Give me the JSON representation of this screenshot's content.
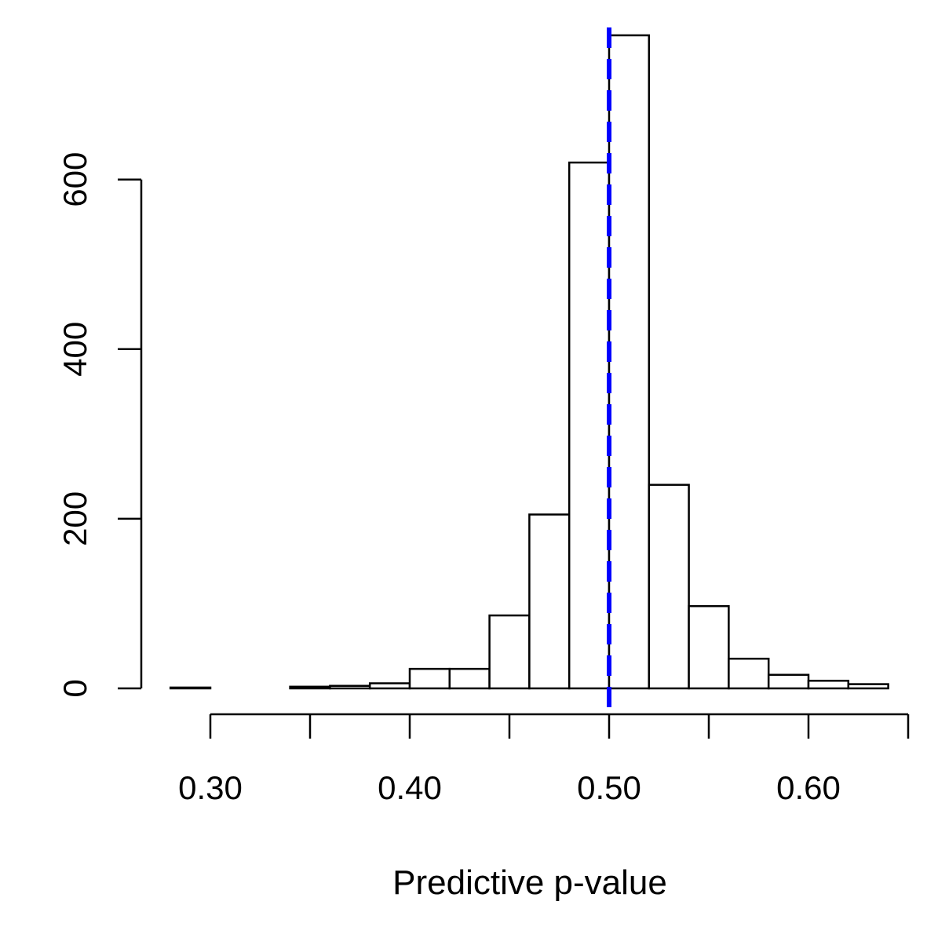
{
  "chart_data": {
    "type": "bar",
    "title": "",
    "xlabel": "Predictive p-value",
    "ylabel": "",
    "bin_edges": [
      0.28,
      0.3,
      0.32,
      0.34,
      0.36,
      0.38,
      0.4,
      0.42,
      0.44,
      0.46,
      0.48,
      0.5,
      0.52,
      0.54,
      0.56,
      0.58,
      0.6,
      0.62,
      0.64
    ],
    "values": [
      1,
      0,
      0,
      2,
      3,
      6,
      23,
      23,
      86,
      205,
      620,
      770,
      240,
      97,
      35,
      16,
      9,
      5
    ],
    "xlim": [
      0.3,
      0.65
    ],
    "ylim": [
      0,
      770
    ],
    "x_ticks": [
      0.3,
      0.35,
      0.4,
      0.45,
      0.5,
      0.55,
      0.6,
      0.65
    ],
    "x_tick_labels": [
      {
        "value": 0.3,
        "label": "0.30"
      },
      {
        "value": 0.4,
        "label": "0.40"
      },
      {
        "value": 0.5,
        "label": "0.50"
      },
      {
        "value": 0.6,
        "label": "0.60"
      }
    ],
    "y_ticks": [
      {
        "value": 0,
        "label": "0"
      },
      {
        "value": 200,
        "label": "200"
      },
      {
        "value": 400,
        "label": "400"
      },
      {
        "value": 600,
        "label": "600"
      }
    ],
    "reference_line": {
      "x": 0.5,
      "color": "#0000ff",
      "style": "dashed"
    },
    "grid": false,
    "legend": "none"
  }
}
